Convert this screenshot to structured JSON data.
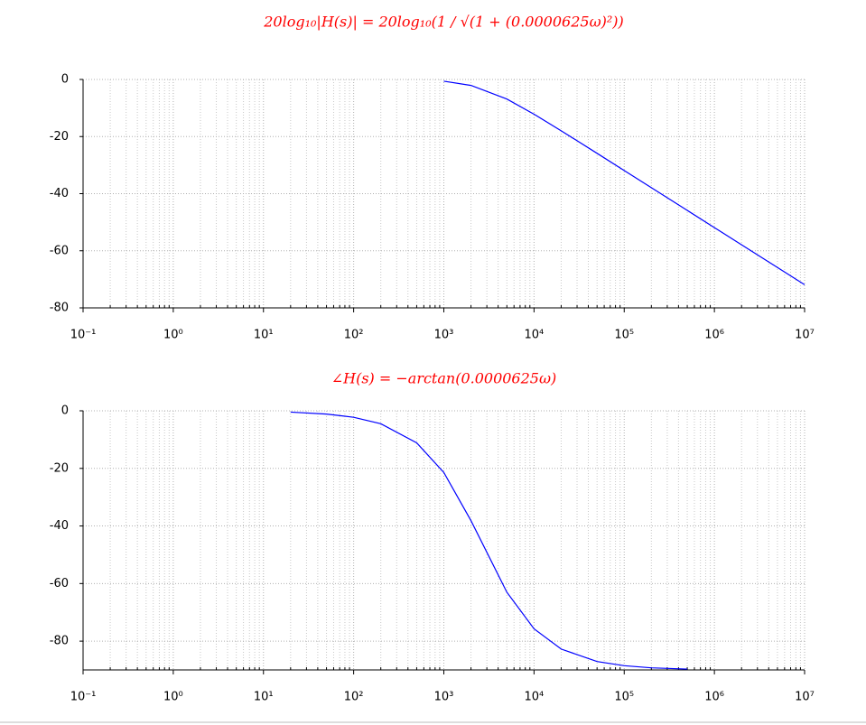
{
  "chart_data": [
    {
      "type": "line",
      "title": "20log₁₀|H(s)| = 20log₁₀(1 / √(1 + (0.0000625ω)²))",
      "x": [
        1000,
        2000,
        5000,
        10000,
        20000,
        50000,
        100000,
        200000,
        500000,
        1000000,
        2000000,
        5000000,
        10000000
      ],
      "values": [
        -0.62,
        -2.09,
        -6.86,
        -12.16,
        -17.97,
        -25.87,
        -31.89,
        -37.91,
        -45.86,
        -51.88,
        -57.9,
        -65.86,
        -71.88
      ],
      "color": "#0000ff",
      "xscale": "log",
      "xlim": [
        0.1,
        10000000
      ],
      "xticks": [
        {
          "value": 0.1,
          "label": "10⁻¹"
        },
        {
          "value": 1,
          "label": "10⁰"
        },
        {
          "value": 10,
          "label": "10¹"
        },
        {
          "value": 100,
          "label": "10²"
        },
        {
          "value": 1000,
          "label": "10³"
        },
        {
          "value": 10000,
          "label": "10⁴"
        },
        {
          "value": 100000,
          "label": "10⁵"
        },
        {
          "value": 1000000,
          "label": "10⁶"
        },
        {
          "value": 10000000,
          "label": "10⁷"
        }
      ],
      "ylim": [
        -80,
        0
      ],
      "yticks": [
        0,
        -20,
        -40,
        -60,
        -80
      ],
      "grid": true,
      "title_color": "#ff0000"
    },
    {
      "type": "line",
      "title": "∠H(s) = −arctan(0.0000625ω)",
      "x": [
        20,
        50,
        100,
        200,
        500,
        1000,
        2000,
        5000,
        10000,
        20000,
        50000,
        100000,
        200000,
        500000
      ],
      "values": [
        -0.45,
        -1.13,
        -2.25,
        -4.49,
        -11.11,
        -21.44,
        -38.16,
        -63.02,
        -75.72,
        -82.75,
        -87.08,
        -88.54,
        -89.27,
        -89.71
      ],
      "color": "#0000ff",
      "xscale": "log",
      "xlim": [
        0.1,
        10000000
      ],
      "xticks": [
        {
          "value": 0.1,
          "label": "10⁻¹"
        },
        {
          "value": 1,
          "label": "10⁰"
        },
        {
          "value": 10,
          "label": "10¹"
        },
        {
          "value": 100,
          "label": "10²"
        },
        {
          "value": 1000,
          "label": "10³"
        },
        {
          "value": 10000,
          "label": "10⁴"
        },
        {
          "value": 100000,
          "label": "10⁵"
        },
        {
          "value": 1000000,
          "label": "10⁶"
        },
        {
          "value": 10000000,
          "label": "10⁷"
        }
      ],
      "ylim": [
        -90,
        0
      ],
      "yticks": [
        0,
        -20,
        -40,
        -60,
        -80
      ],
      "grid": true,
      "title_color": "#ff0000"
    }
  ]
}
